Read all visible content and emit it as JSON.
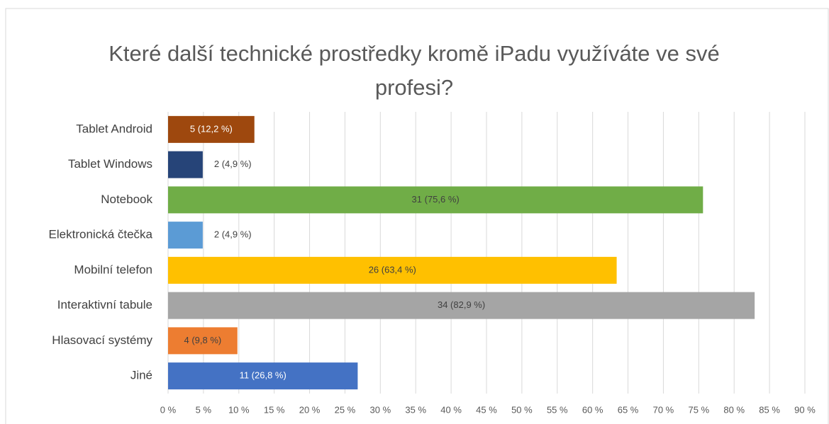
{
  "chart_data": {
    "type": "bar",
    "orientation": "horizontal",
    "title": "Které další technické prostředky kromě iPadu využíváte ve své profesi?",
    "categories": [
      "Tablet Android",
      "Tablet Windows",
      "Notebook",
      "Elektronická čtečka",
      "Mobilní telefon",
      "Interaktivní tabule",
      "Hlasovací systémy",
      "Jiné"
    ],
    "values": [
      12.2,
      4.9,
      75.6,
      4.9,
      63.4,
      82.9,
      9.8,
      26.8
    ],
    "value_labels": [
      "5 (12,2 %)",
      "2 (4,9 %)",
      "31 (75,6 %)",
      "2 (4,9 %)",
      "26 (63,4 %)",
      "34 (82,9 %)",
      "4 (9,8 %)",
      "11 (26,8 %)"
    ],
    "colors": [
      "#9e480e",
      "#264478",
      "#70ad47",
      "#5b9bd5",
      "#ffc000",
      "#a5a5a5",
      "#ed7d31",
      "#4472c4"
    ],
    "xlim": [
      0,
      90
    ],
    "xticks": [
      {
        "value": 0,
        "label": "0 %"
      },
      {
        "value": 5,
        "label": "5 %"
      },
      {
        "value": 10,
        "label": "10 %"
      },
      {
        "value": 15,
        "label": "15 %"
      },
      {
        "value": 20,
        "label": "20 %"
      },
      {
        "value": 25,
        "label": "25 %"
      },
      {
        "value": 30,
        "label": "30 %"
      },
      {
        "value": 35,
        "label": "35 %"
      },
      {
        "value": 40,
        "label": "40 %"
      },
      {
        "value": 45,
        "label": "45 %"
      },
      {
        "value": 50,
        "label": "50 %"
      },
      {
        "value": 55,
        "label": "55 %"
      },
      {
        "value": 60,
        "label": "60 %"
      },
      {
        "value": 65,
        "label": "65 %"
      },
      {
        "value": 70,
        "label": "70 %"
      },
      {
        "value": 75,
        "label": "75 %"
      },
      {
        "value": 80,
        "label": "80 %"
      },
      {
        "value": 85,
        "label": "85 %"
      },
      {
        "value": 90,
        "label": "90 %"
      }
    ],
    "grid": true
  }
}
